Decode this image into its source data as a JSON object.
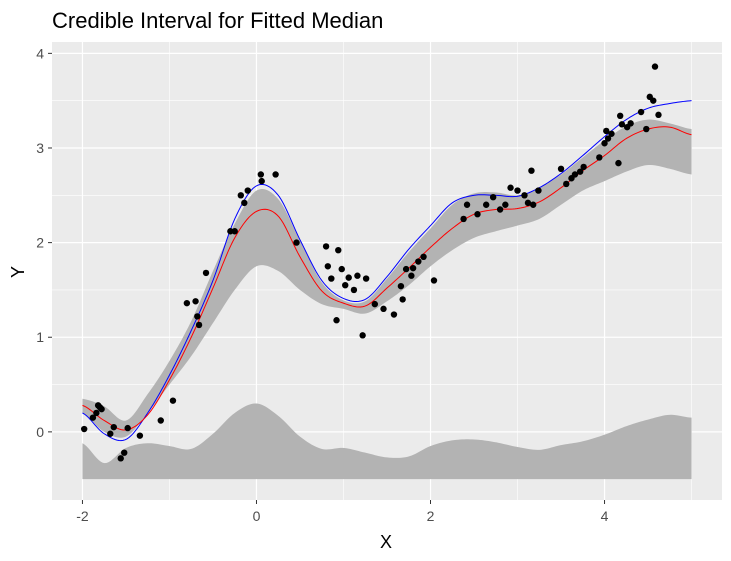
{
  "chart_data": {
    "type": "scatter",
    "title": "Credible Interval for Fitted Median",
    "xlabel": "X",
    "ylabel": "Y",
    "xlim": [
      -2.35,
      5.35
    ],
    "ylim": [
      -0.72,
      4.12
    ],
    "x_ticks": [
      -2,
      0,
      2,
      4
    ],
    "x_tick_labels": [
      "-2",
      "0",
      "2",
      "4"
    ],
    "y_ticks": [
      0,
      1,
      2,
      3,
      4
    ],
    "y_tick_labels": [
      "0",
      "1",
      "2",
      "3",
      "4"
    ],
    "grid": true,
    "colors": {
      "panel": "#ebebeb",
      "grid_major": "#ffffff",
      "band": "#b3b3b3",
      "median_line": "#ff0000",
      "upper_line": "#0000ff",
      "points": "#000000"
    },
    "band": {
      "x": [
        -2.0,
        -1.75,
        -1.5,
        -1.25,
        -1.0,
        -0.75,
        -0.5,
        -0.25,
        0.0,
        0.25,
        0.5,
        0.75,
        1.0,
        1.25,
        1.5,
        1.75,
        2.0,
        2.25,
        2.5,
        2.75,
        3.0,
        3.25,
        3.5,
        3.75,
        4.0,
        4.25,
        4.5,
        4.75,
        5.0
      ],
      "upper": [
        0.35,
        0.27,
        0.12,
        0.4,
        0.75,
        1.17,
        1.7,
        2.2,
        2.55,
        2.46,
        2.02,
        1.58,
        1.39,
        1.38,
        1.62,
        1.9,
        2.15,
        2.4,
        2.52,
        2.53,
        2.5,
        2.58,
        2.72,
        2.9,
        3.08,
        3.23,
        3.3,
        3.26,
        3.2
      ],
      "lower": [
        0.2,
        0.0,
        -0.05,
        0.2,
        0.5,
        0.8,
        1.15,
        1.5,
        1.75,
        1.7,
        1.5,
        1.35,
        1.3,
        1.25,
        1.38,
        1.55,
        1.75,
        1.92,
        2.05,
        2.12,
        2.18,
        2.25,
        2.4,
        2.55,
        2.65,
        2.75,
        2.82,
        2.78,
        2.72
      ]
    },
    "lower_band": {
      "x": [
        -2.0,
        -1.75,
        -1.5,
        -1.25,
        -1.0,
        -0.75,
        -0.5,
        -0.25,
        0.0,
        0.25,
        0.5,
        0.75,
        1.0,
        1.25,
        1.5,
        1.75,
        2.0,
        2.25,
        2.5,
        2.75,
        3.0,
        3.25,
        3.5,
        3.75,
        4.0,
        4.25,
        4.5,
        4.75,
        5.0
      ],
      "upper": [
        -0.12,
        -0.33,
        -0.17,
        -0.12,
        -0.15,
        -0.18,
        -0.02,
        0.2,
        0.3,
        0.17,
        -0.05,
        -0.18,
        -0.17,
        -0.22,
        -0.27,
        -0.26,
        -0.15,
        -0.09,
        -0.08,
        -0.11,
        -0.16,
        -0.19,
        -0.14,
        -0.1,
        -0.03,
        0.06,
        0.13,
        0.18,
        0.15
      ],
      "floor": -0.5
    },
    "series": [
      {
        "x": [
          -2.0,
          -1.75,
          -1.5,
          -1.25,
          -1.0,
          -0.75,
          -0.5,
          -0.25,
          0.0,
          0.25,
          0.5,
          0.75,
          1.0,
          1.25,
          1.5,
          1.75,
          2.0,
          2.25,
          2.5,
          2.75,
          3.0,
          3.25,
          3.5,
          3.75,
          4.0,
          4.25,
          4.5,
          4.75,
          5.0
        ],
        "values": [
          0.28,
          0.12,
          0.02,
          0.18,
          0.55,
          1.0,
          1.52,
          2.05,
          2.33,
          2.28,
          1.85,
          1.49,
          1.36,
          1.33,
          1.52,
          1.73,
          1.95,
          2.15,
          2.3,
          2.35,
          2.36,
          2.43,
          2.58,
          2.76,
          2.92,
          3.1,
          3.2,
          3.22,
          3.14
        ]
      },
      {
        "x": [
          -2.0,
          -1.75,
          -1.5,
          -1.25,
          -1.0,
          -0.75,
          -0.5,
          -0.25,
          0.0,
          0.25,
          0.5,
          0.75,
          1.0,
          1.25,
          1.5,
          1.75,
          2.0,
          2.25,
          2.5,
          2.75,
          3.0,
          3.25,
          3.5,
          3.75,
          4.0,
          4.25,
          4.5,
          4.75,
          5.0
        ],
        "values": [
          0.2,
          -0.02,
          -0.08,
          0.2,
          0.6,
          1.07,
          1.6,
          2.25,
          2.6,
          2.5,
          2.03,
          1.6,
          1.41,
          1.4,
          1.64,
          1.93,
          2.18,
          2.42,
          2.5,
          2.5,
          2.49,
          2.58,
          2.73,
          2.92,
          3.12,
          3.3,
          3.42,
          3.47,
          3.5
        ]
      }
    ],
    "points": {
      "x": [
        -1.98,
        -1.88,
        -1.84,
        -1.82,
        -1.8,
        -1.78,
        -1.68,
        -1.64,
        -1.56,
        -1.52,
        -1.48,
        -1.34,
        -1.1,
        -0.96,
        -0.8,
        -0.7,
        -0.68,
        -0.66,
        -0.58,
        -0.3,
        -0.25,
        -0.18,
        -0.14,
        -0.1,
        0.05,
        0.06,
        0.22,
        0.46,
        0.8,
        0.82,
        0.86,
        0.92,
        0.94,
        0.98,
        1.02,
        1.06,
        1.12,
        1.16,
        1.22,
        1.26,
        1.36,
        1.46,
        1.58,
        1.66,
        1.68,
        1.72,
        1.78,
        1.8,
        1.86,
        1.92,
        2.04,
        2.38,
        2.42,
        2.54,
        2.64,
        2.72,
        2.8,
        2.86,
        2.92,
        3.0,
        3.08,
        3.12,
        3.16,
        3.18,
        3.24,
        3.5,
        3.56,
        3.62,
        3.66,
        3.72,
        3.76,
        3.94,
        4.0,
        4.02,
        4.04,
        4.08,
        4.16,
        4.18,
        4.2,
        4.26,
        4.3,
        4.42,
        4.48,
        4.52,
        4.56,
        4.58,
        4.62
      ],
      "y": [
        0.03,
        0.15,
        0.2,
        0.28,
        0.26,
        0.24,
        -0.02,
        0.05,
        -0.28,
        -0.22,
        0.04,
        -0.04,
        0.12,
        0.33,
        1.36,
        1.38,
        1.22,
        1.13,
        1.68,
        2.12,
        2.12,
        2.5,
        2.42,
        2.55,
        2.72,
        2.65,
        2.72,
        2.0,
        1.96,
        1.75,
        1.62,
        1.18,
        1.92,
        1.72,
        1.55,
        1.63,
        1.5,
        1.65,
        1.02,
        1.62,
        1.35,
        1.3,
        1.24,
        1.54,
        1.4,
        1.72,
        1.65,
        1.73,
        1.8,
        1.85,
        1.6,
        2.25,
        2.4,
        2.3,
        2.4,
        2.48,
        2.35,
        2.4,
        2.58,
        2.55,
        2.5,
        2.42,
        2.76,
        2.4,
        2.55,
        2.78,
        2.62,
        2.68,
        2.72,
        2.75,
        2.8,
        2.9,
        3.05,
        3.18,
        3.1,
        3.15,
        2.84,
        3.34,
        3.25,
        3.22,
        3.26,
        3.38,
        3.2,
        3.54,
        3.5,
        3.86,
        3.35
      ]
    }
  }
}
